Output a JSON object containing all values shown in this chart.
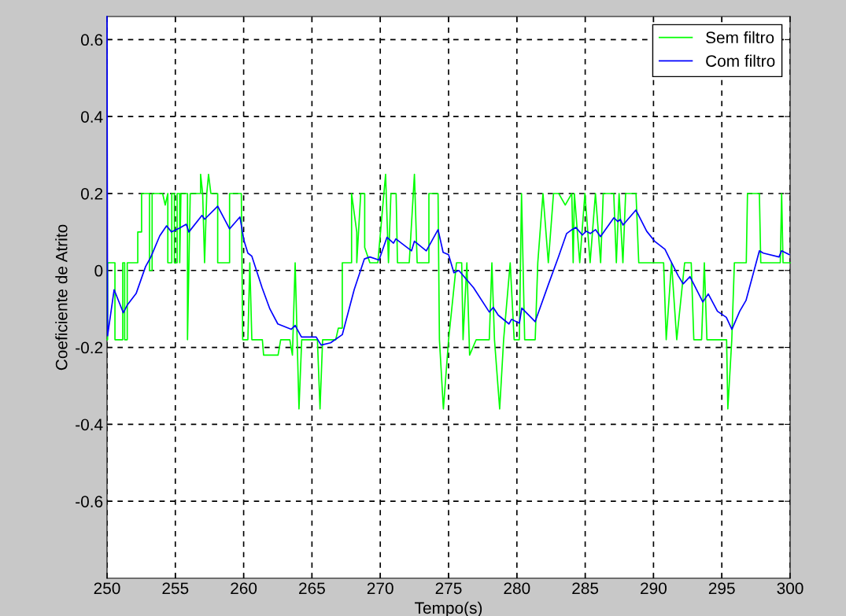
{
  "chart_data": {
    "type": "line",
    "xlabel": "Tempo(s)",
    "ylabel": "Coeficiente de Atrito",
    "xlim": [
      250,
      300
    ],
    "xticks": [
      250,
      255,
      260,
      265,
      270,
      275,
      280,
      285,
      290,
      295,
      300
    ],
    "ylim": [
      -0.8,
      0.66
    ],
    "yticks": [
      -0.6,
      -0.4,
      -0.2,
      0,
      0.2,
      0.4,
      0.6
    ],
    "grid": true,
    "legend": "top right",
    "line_style": "solid",
    "series": [
      {
        "name": "Sem filtro",
        "color": "#00ff00",
        "x": [
          250,
          250.04,
          250.04,
          250.58,
          250.58,
          251.15,
          251.15,
          251.29,
          251.29,
          251.48,
          251.48,
          252.25,
          252.25,
          252.53,
          252.53,
          253.11,
          253.11,
          253.3,
          253.3,
          254.07,
          254.26,
          254.45,
          254.45,
          254.74,
          254.74,
          254.93,
          254.93,
          255.13,
          255.13,
          255.32,
          255.32,
          255.41,
          255.89,
          255.89,
          256.09,
          256.85,
          256.85,
          257.0,
          257.14,
          257.3,
          257.43,
          257.6,
          258.1,
          258.1,
          258.97,
          258.97,
          259.83,
          259.93,
          260.31,
          260.45,
          260.6,
          261.37,
          261.46,
          262.52,
          262.71,
          263.38,
          263.57,
          263.77,
          264.05,
          264.25,
          265.4,
          265.59,
          265.78,
          266.74,
          266.93,
          267.22,
          267.22,
          267.9,
          267.9,
          268.28,
          268.28,
          268.57,
          268.86,
          268.86,
          269.24,
          269.82,
          270.39,
          270.6,
          270.78,
          271.16,
          271.26,
          272.12,
          272.5,
          272.7,
          273.56,
          273.56,
          274.23,
          274.33,
          274.62,
          274.81,
          275,
          275.58,
          275.96,
          276.06,
          276.34,
          276.54,
          277.02,
          277.98,
          278.17,
          278.36,
          278.74,
          279.03,
          279.51,
          279.8,
          280.18,
          280.34,
          280.57,
          281.34,
          281.53,
          281.91,
          282.3,
          282.68,
          283.06,
          283.54,
          284.02,
          284.12,
          284.21,
          284.6,
          284.98,
          285.36,
          285.75,
          286.13,
          286.32,
          287.09,
          287.28,
          287.48,
          287.76,
          287.96,
          288.72,
          288.92,
          290.74,
          290.93,
          291.32,
          291.7,
          292.28,
          292.76,
          292.95,
          293.52,
          293.72,
          293.91,
          294.1,
          295.35,
          295.44,
          295.73,
          295.92,
          296.79,
          296.88,
          297.75,
          297.85,
          299.28,
          299.38,
          299.48,
          300
        ],
        "values": [
          -0.18,
          -0.18,
          0.02,
          0.02,
          -0.18,
          -0.18,
          0.02,
          0.02,
          -0.18,
          -0.18,
          0.02,
          0.02,
          0.1,
          0.1,
          0.2,
          0.2,
          0.0,
          0.0,
          0.2,
          0.2,
          0.17,
          0.2,
          0.02,
          0.02,
          0.2,
          0.2,
          0.02,
          0.02,
          0.2,
          0.2,
          0.02,
          0.2,
          0.2,
          -0.18,
          0.2,
          0.2,
          0.25,
          0.2,
          0.02,
          0.2,
          0.25,
          0.2,
          0.2,
          0.02,
          0.02,
          0.2,
          0.2,
          -0.18,
          -0.18,
          0.02,
          -0.18,
          -0.18,
          -0.22,
          -0.22,
          -0.18,
          -0.18,
          -0.22,
          0.02,
          -0.36,
          -0.18,
          -0.18,
          -0.36,
          -0.18,
          -0.18,
          -0.15,
          -0.15,
          0.02,
          0.02,
          0.2,
          0.1,
          0.02,
          0.2,
          0.2,
          0.06,
          0.02,
          0.02,
          0.25,
          0.02,
          0.2,
          0.2,
          0.02,
          0.02,
          0.25,
          0.02,
          0.02,
          0.2,
          0.2,
          -0.18,
          -0.36,
          -0.27,
          -0.18,
          0.02,
          0.02,
          -0.18,
          0.02,
          -0.22,
          -0.18,
          -0.18,
          0.02,
          -0.18,
          -0.36,
          -0.18,
          0.02,
          -0.18,
          -0.18,
          0.2,
          -0.18,
          -0.18,
          0.02,
          0.2,
          0.02,
          0.2,
          0.2,
          0.17,
          0.2,
          0.02,
          0.2,
          0.02,
          0.2,
          0.02,
          0.2,
          0.02,
          0.2,
          0.2,
          0.02,
          0.2,
          0.02,
          0.2,
          0.2,
          0.02,
          0.02,
          -0.18,
          0.02,
          -0.18,
          0.02,
          0.02,
          -0.18,
          -0.18,
          0.02,
          -0.18,
          -0.18,
          -0.18,
          -0.36,
          -0.18,
          0.02,
          0.02,
          0.2,
          0.2,
          0.02,
          0.02,
          0.2,
          0.02,
          0.02
        ]
      },
      {
        "name": "Com filtro",
        "color": "#0000ff",
        "x": [
          250,
          250.04,
          250.52,
          251.19,
          251.48,
          252.13,
          252.82,
          253.21,
          253.86,
          254.36,
          254.72,
          255.3,
          255.8,
          255.99,
          256.95,
          257.14,
          258.1,
          258.97,
          259.73,
          260.02,
          260.31,
          260.6,
          261.35,
          261.92,
          262.5,
          263.48,
          263.77,
          264.23,
          265.31,
          265.67,
          266.36,
          267.22,
          268.09,
          268.84,
          269.24,
          269.91,
          270.49,
          270.97,
          271.14,
          272.29,
          272.5,
          273.37,
          274.23,
          274.6,
          275,
          275.39,
          275.75,
          276.83,
          277.98,
          278.27,
          278.63,
          279.42,
          279.61,
          280.18,
          280.36,
          281.34,
          282.3,
          283.06,
          283.64,
          284.03,
          284.32,
          284.79,
          285.08,
          285.37,
          285.76,
          286.12,
          287.1,
          287.39,
          287.56,
          287.77,
          288.71,
          289.5,
          290.08,
          290.84,
          291.23,
          291.81,
          292.17,
          292.67,
          293.61,
          294.01,
          294.68,
          295.33,
          295.74,
          296.31,
          296.77,
          297.75,
          298.04,
          299.19,
          299.37,
          299.94
        ],
        "values": [
          0.66,
          -0.17,
          -0.05,
          -0.11,
          -0.09,
          -0.06,
          0.01,
          0.035,
          0.09,
          0.116,
          0.1,
          0.11,
          0.12,
          0.1,
          0.143,
          0.133,
          0.167,
          0.108,
          0.139,
          0.078,
          0.045,
          0.037,
          -0.045,
          -0.1,
          -0.139,
          -0.153,
          -0.143,
          -0.173,
          -0.173,
          -0.194,
          -0.188,
          -0.167,
          -0.05,
          0.03,
          0.035,
          0.027,
          0.086,
          0.071,
          0.082,
          0.051,
          0.076,
          0.051,
          0.106,
          0.047,
          0.041,
          -0.006,
          0,
          -0.045,
          -0.108,
          -0.096,
          -0.116,
          -0.139,
          -0.127,
          -0.137,
          -0.098,
          -0.133,
          -0.037,
          0.037,
          0.096,
          0.106,
          0.112,
          0.092,
          0.102,
          0.096,
          0.106,
          0.088,
          0.137,
          0.127,
          0.133,
          0.118,
          0.157,
          0.102,
          0.076,
          0.055,
          0.027,
          -0.014,
          -0.035,
          -0.016,
          -0.082,
          -0.061,
          -0.106,
          -0.122,
          -0.153,
          -0.106,
          -0.078,
          0.051,
          0.045,
          0.035,
          0.051,
          0.041
        ]
      }
    ]
  }
}
